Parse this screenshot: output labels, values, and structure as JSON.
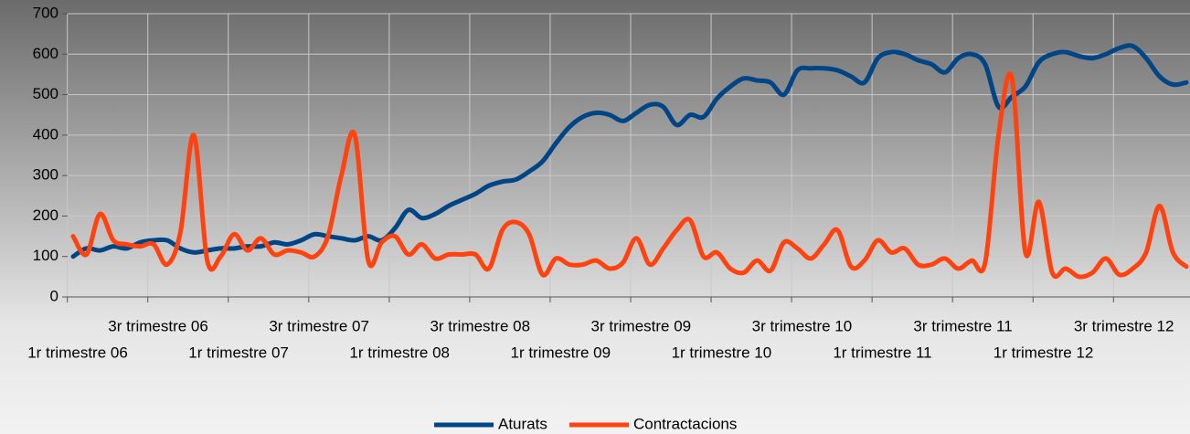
{
  "chart_data": {
    "type": "line",
    "categories": [
      "1r trimestre 06",
      null,
      null,
      null,
      null,
      null,
      "3r trimestre 06",
      null,
      null,
      null,
      null,
      null,
      "1r trimestre 07",
      null,
      null,
      null,
      null,
      null,
      "3r trimestre 07",
      null,
      null,
      null,
      null,
      null,
      "1r trimestre 08",
      null,
      null,
      null,
      null,
      null,
      "3r trimestre 08",
      null,
      null,
      null,
      null,
      null,
      "1r trimestre 09",
      null,
      null,
      null,
      null,
      null,
      "3r trimestre 09",
      null,
      null,
      null,
      null,
      null,
      "1r trimestre 10",
      null,
      null,
      null,
      null,
      null,
      "3r trimestre 10",
      null,
      null,
      null,
      null,
      null,
      "1r trimestre 11",
      null,
      null,
      null,
      null,
      null,
      "3r trimestre 11",
      null,
      null,
      null,
      null,
      null,
      "1r trimestre 12",
      null,
      null,
      null,
      null,
      null,
      "3r trimestre 12",
      null,
      null,
      null,
      null,
      null
    ],
    "series": [
      {
        "name": "Aturats",
        "color": "#004586",
        "values": [
          100,
          120,
          115,
          125,
          120,
          135,
          140,
          140,
          120,
          110,
          115,
          120,
          120,
          125,
          125,
          135,
          130,
          140,
          155,
          150,
          145,
          140,
          150,
          140,
          170,
          215,
          195,
          205,
          225,
          240,
          255,
          275,
          285,
          290,
          310,
          335,
          380,
          420,
          445,
          455,
          450,
          435,
          455,
          475,
          470,
          425,
          450,
          445,
          490,
          520,
          540,
          535,
          530,
          500,
          560,
          565,
          565,
          560,
          545,
          530,
          590,
          605,
          600,
          585,
          575,
          555,
          590,
          600,
          575,
          470,
          495,
          520,
          580,
          600,
          605,
          595,
          590,
          600,
          615,
          620,
          590,
          545,
          525,
          530
        ]
      },
      {
        "name": "Contractacions",
        "color": "#ff420e",
        "values": [
          150,
          105,
          205,
          140,
          130,
          125,
          130,
          80,
          160,
          400,
          90,
          100,
          155,
          115,
          145,
          105,
          115,
          110,
          100,
          150,
          300,
          400,
          90,
          135,
          150,
          105,
          130,
          95,
          105,
          105,
          105,
          70,
          165,
          185,
          155,
          55,
          95,
          80,
          80,
          90,
          70,
          85,
          145,
          80,
          120,
          165,
          190,
          100,
          110,
          70,
          60,
          90,
          65,
          135,
          120,
          95,
          130,
          165,
          75,
          90,
          140,
          110,
          120,
          80,
          80,
          95,
          70,
          90,
          85,
          400,
          540,
          110,
          235,
          60,
          70,
          50,
          60,
          95,
          55,
          70,
          110,
          225,
          110,
          75
        ]
      }
    ],
    "ylim": [
      0,
      700
    ],
    "yticks": [
      0,
      100,
      200,
      300,
      400,
      500,
      600,
      700
    ],
    "grid": true,
    "legend": "bottom"
  }
}
